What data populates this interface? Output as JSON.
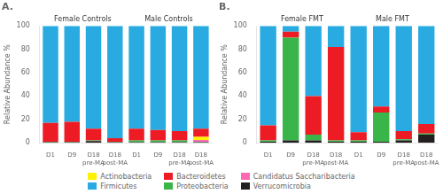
{
  "chart_data": [
    {
      "type": "bar",
      "stacked": true,
      "title": "A.",
      "ylabel": "Relative Abundance %",
      "groups": [
        {
          "name": "Female Controls",
          "categories": [
            "D1",
            "D9",
            "D18\npre-MA",
            "D18\npost-MA"
          ]
        },
        {
          "name": "Male Controls",
          "categories": [
            "D1",
            "D9",
            "D18\npre-MA",
            "D18\npost-MA"
          ]
        }
      ],
      "series": [
        {
          "name": "Verrucomicrobia",
          "color": "#231F20",
          "values": [
            0.5,
            0.5,
            1.5,
            0.5,
            0.5,
            0.5,
            0.5,
            0.5
          ]
        },
        {
          "name": "Proteobacteria",
          "color": "#39B54A",
          "values": [
            0.5,
            0.5,
            0.5,
            0.5,
            1.5,
            1.5,
            1.5,
            0.5
          ]
        },
        {
          "name": "Candidatus Saccharibacteria",
          "color": "#FF69B4",
          "values": [
            0,
            0,
            0,
            0,
            0,
            0,
            0,
            1.5
          ]
        },
        {
          "name": "Actinobacteria",
          "color": "#FFF200",
          "values": [
            0,
            0,
            0,
            0,
            0,
            0,
            0,
            2.5
          ]
        },
        {
          "name": "Bacteroidetes",
          "color": "#ED1C24",
          "values": [
            16,
            17,
            10,
            3,
            10,
            9,
            8,
            7
          ]
        },
        {
          "name": "Firmicutes",
          "color": "#29ABE2",
          "values": [
            83,
            82,
            88,
            96,
            88,
            89,
            90,
            88
          ]
        }
      ],
      "ylim": [
        0,
        100
      ],
      "yticks": [
        0,
        20,
        40,
        60,
        80,
        100
      ],
      "grid": false,
      "legend": "bottom"
    },
    {
      "type": "bar",
      "stacked": true,
      "title": "B.",
      "ylabel": "Relative Abundance %",
      "groups": [
        {
          "name": "Female FMT",
          "categories": [
            "D1",
            "D9",
            "D18\npre-MA",
            "D18\npost-MA"
          ]
        },
        {
          "name": "Male FMT",
          "categories": [
            "D1",
            "D9",
            "D18\npre-MA",
            "D18\npost-MA"
          ]
        }
      ],
      "series": [
        {
          "name": "Verrucomicrobia",
          "color": "#231F20",
          "values": [
            1,
            2,
            2,
            1,
            1,
            1,
            2,
            7
          ]
        },
        {
          "name": "Proteobacteria",
          "color": "#39B54A",
          "values": [
            1,
            88,
            5,
            1,
            1,
            25,
            1,
            1
          ]
        },
        {
          "name": "Candidatus Saccharibacteria",
          "color": "#FF69B4",
          "values": [
            0,
            0,
            0,
            0,
            0,
            0,
            0,
            0
          ]
        },
        {
          "name": "Actinobacteria",
          "color": "#FFF200",
          "values": [
            0,
            0,
            0,
            0,
            0,
            0,
            0,
            0
          ]
        },
        {
          "name": "Bacteroidetes",
          "color": "#ED1C24",
          "values": [
            13,
            5,
            33,
            80,
            7,
            5,
            7,
            8
          ]
        },
        {
          "name": "Firmicutes",
          "color": "#29ABE2",
          "values": [
            85,
            5,
            60,
            18,
            91,
            69,
            90,
            84
          ]
        }
      ],
      "ylim": [
        0,
        100
      ],
      "yticks": [
        0,
        20,
        40,
        60,
        80,
        100
      ],
      "grid": false,
      "legend": "bottom"
    }
  ]
}
